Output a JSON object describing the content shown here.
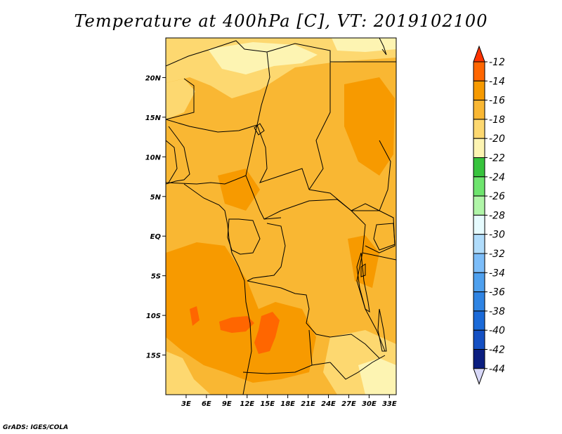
{
  "title": "Temperature at 400hPa [C], VT: 2019102100",
  "credit": "GrADS: IGES/COLA",
  "map": {
    "lon_range": [
      0,
      34
    ],
    "lat_range": [
      -20,
      25
    ],
    "lat_ticks": [
      {
        "lat": 20,
        "label": "20N"
      },
      {
        "lat": 15,
        "label": "15N"
      },
      {
        "lat": 10,
        "label": "10N"
      },
      {
        "lat": 5,
        "label": "5N"
      },
      {
        "lat": 0,
        "label": "EQ"
      },
      {
        "lat": -5,
        "label": "5S"
      },
      {
        "lat": -10,
        "label": "10S"
      },
      {
        "lat": -15,
        "label": "15S"
      }
    ],
    "lon_ticks": [
      {
        "lon": 3,
        "label": "3E"
      },
      {
        "lon": 6,
        "label": "6E"
      },
      {
        "lon": 9,
        "label": "9E"
      },
      {
        "lon": 12,
        "label": "12E"
      },
      {
        "lon": 15,
        "label": "15E"
      },
      {
        "lon": 18,
        "label": "18E"
      },
      {
        "lon": 21,
        "label": "21E"
      },
      {
        "lon": 24,
        "label": "24E"
      },
      {
        "lon": 27,
        "label": "27E"
      },
      {
        "lon": 30,
        "label": "30E"
      },
      {
        "lon": 33,
        "label": "33E"
      }
    ]
  },
  "colorbar": {
    "levels": [
      "-12",
      "-14",
      "-16",
      "-18",
      "-20",
      "-22",
      "-24",
      "-26",
      "-28",
      "-30",
      "-32",
      "-34",
      "-36",
      "-38",
      "-40",
      "-42",
      "-44"
    ],
    "colors": [
      "#ff3300",
      "#ff6600",
      "#f79a00",
      "#f9b733",
      "#fdd870",
      "#fdf4b2",
      "#37c33d",
      "#6ee46e",
      "#b0f5a8",
      "#e6fbfe",
      "#b0dcfb",
      "#7cbdf9",
      "#4ea0ee",
      "#2f84e3",
      "#1b6ad8",
      "#1450c3",
      "#0b1e80",
      "#d8d8f8"
    ]
  }
}
